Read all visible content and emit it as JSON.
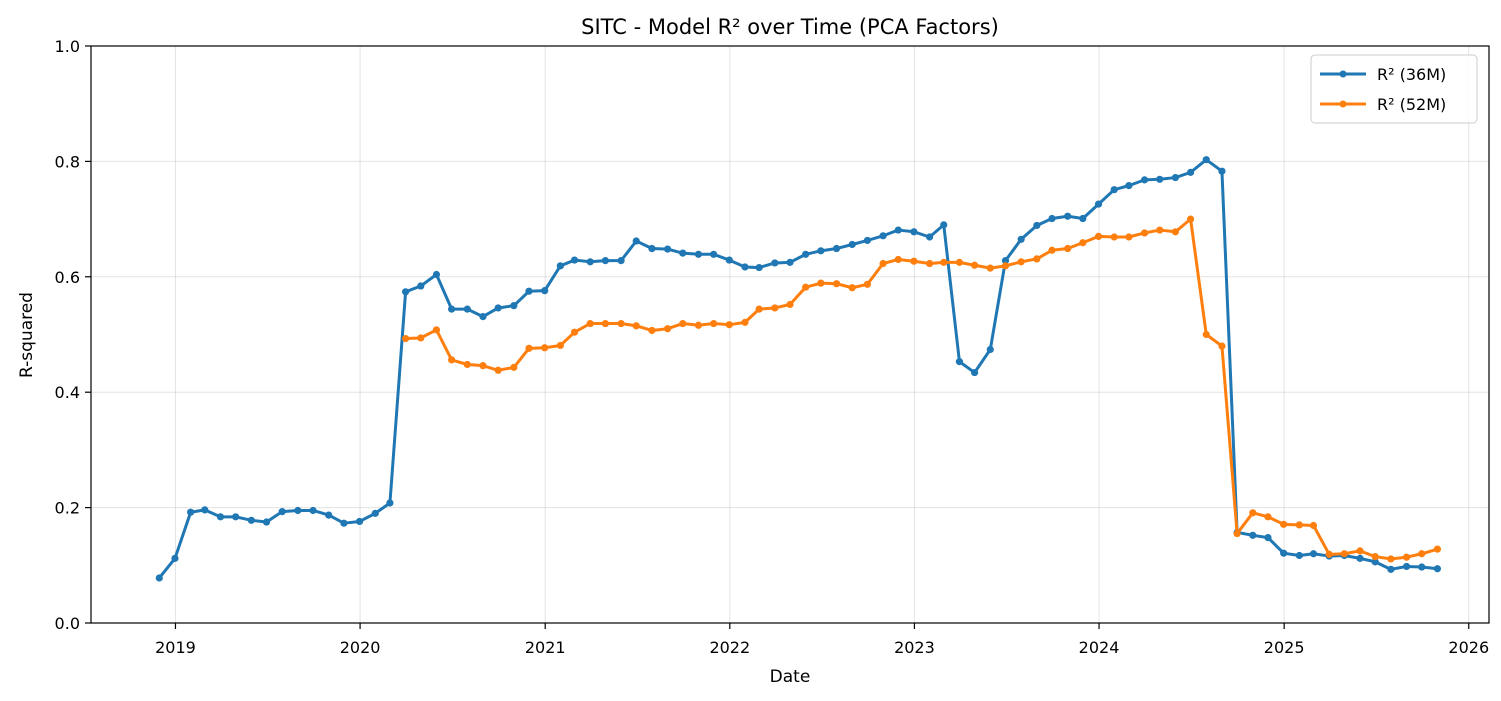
{
  "chart_data": {
    "type": "line",
    "title": "SITC - Model R² over Time (PCA Factors)",
    "xlabel": "Date",
    "ylabel": "R-squared",
    "ylim": [
      0,
      1.0
    ],
    "xlim": [
      "2018-07-18",
      "2026-02-10"
    ],
    "x_ticks": [
      "2019-01-01",
      "2020-01-01",
      "2021-01-01",
      "2022-01-01",
      "2023-01-01",
      "2024-01-01",
      "2025-01-01",
      "2026-01-01"
    ],
    "x_tick_labels": [
      "2019",
      "2020",
      "2021",
      "2022",
      "2023",
      "2024",
      "2025",
      "2026"
    ],
    "y_ticks": [
      0.0,
      0.2,
      0.4,
      0.6,
      0.8,
      1.0
    ],
    "y_tick_labels": [
      "0.0",
      "0.2",
      "0.4",
      "0.6",
      "0.8",
      "1.0"
    ],
    "grid": true,
    "legend_position": "top-right",
    "series": [
      {
        "name": "R² (36M)",
        "color": "#1f77b4",
        "x": [
          "2018-11-30",
          "2018-12-31",
          "2019-01-31",
          "2019-02-28",
          "2019-03-31",
          "2019-04-30",
          "2019-05-31",
          "2019-06-30",
          "2019-07-31",
          "2019-08-31",
          "2019-09-30",
          "2019-10-31",
          "2019-11-30",
          "2019-12-31",
          "2020-01-31",
          "2020-02-29",
          "2020-03-31",
          "2020-04-30",
          "2020-05-31",
          "2020-06-30",
          "2020-07-31",
          "2020-08-31",
          "2020-09-30",
          "2020-10-31",
          "2020-11-30",
          "2020-12-31",
          "2021-01-31",
          "2021-02-28",
          "2021-03-31",
          "2021-04-30",
          "2021-05-31",
          "2021-06-30",
          "2021-07-31",
          "2021-08-31",
          "2021-09-30",
          "2021-10-31",
          "2021-11-30",
          "2021-12-31",
          "2022-01-31",
          "2022-02-28",
          "2022-03-31",
          "2022-04-30",
          "2022-05-31",
          "2022-06-30",
          "2022-07-31",
          "2022-08-31",
          "2022-09-30",
          "2022-10-31",
          "2022-11-30",
          "2022-12-31",
          "2023-01-31",
          "2023-02-28",
          "2023-03-31",
          "2023-04-30",
          "2023-05-31",
          "2023-06-30",
          "2023-07-31",
          "2023-08-31",
          "2023-09-30",
          "2023-10-31",
          "2023-11-30",
          "2023-12-31",
          "2024-01-31",
          "2024-02-29",
          "2024-03-31",
          "2024-04-30",
          "2024-05-31",
          "2024-06-30",
          "2024-07-31",
          "2024-08-31",
          "2024-09-30",
          "2024-10-31",
          "2024-11-30",
          "2024-12-31",
          "2025-01-31",
          "2025-02-28",
          "2025-03-31",
          "2025-04-30",
          "2025-05-31",
          "2025-06-30",
          "2025-07-31",
          "2025-08-31",
          "2025-09-30",
          "2025-10-31"
        ],
        "values": [
          0.078,
          0.112,
          0.192,
          0.196,
          0.184,
          0.184,
          0.178,
          0.175,
          0.193,
          0.195,
          0.195,
          0.187,
          0.173,
          0.176,
          0.19,
          0.208,
          0.574,
          0.584,
          0.604,
          0.544,
          0.544,
          0.531,
          0.546,
          0.55,
          0.575,
          0.576,
          0.619,
          0.629,
          0.626,
          0.628,
          0.628,
          0.662,
          0.649,
          0.648,
          0.641,
          0.639,
          0.639,
          0.629,
          0.617,
          0.616,
          0.624,
          0.625,
          0.639,
          0.645,
          0.649,
          0.656,
          0.663,
          0.671,
          0.681,
          0.678,
          0.669,
          0.69,
          0.453,
          0.434,
          0.474,
          0.628,
          0.665,
          0.689,
          0.701,
          0.705,
          0.701,
          0.726,
          0.751,
          0.758,
          0.768,
          0.769,
          0.772,
          0.781,
          0.803,
          0.783,
          0.157,
          0.152,
          0.148,
          0.121,
          0.117,
          0.12,
          0.116,
          0.117,
          0.112,
          0.106,
          0.093,
          0.098,
          0.097,
          0.094
        ]
      },
      {
        "name": "R² (52M)",
        "color": "#ff7f0e",
        "x": [
          "2020-03-31",
          "2020-04-30",
          "2020-05-31",
          "2020-06-30",
          "2020-07-31",
          "2020-08-31",
          "2020-09-30",
          "2020-10-31",
          "2020-11-30",
          "2020-12-31",
          "2021-01-31",
          "2021-02-28",
          "2021-03-31",
          "2021-04-30",
          "2021-05-31",
          "2021-06-30",
          "2021-07-31",
          "2021-08-31",
          "2021-09-30",
          "2021-10-31",
          "2021-11-30",
          "2021-12-31",
          "2022-01-31",
          "2022-02-28",
          "2022-03-31",
          "2022-04-30",
          "2022-05-31",
          "2022-06-30",
          "2022-07-31",
          "2022-08-31",
          "2022-09-30",
          "2022-10-31",
          "2022-11-30",
          "2022-12-31",
          "2023-01-31",
          "2023-02-28",
          "2023-03-31",
          "2023-04-30",
          "2023-05-31",
          "2023-06-30",
          "2023-07-31",
          "2023-08-31",
          "2023-09-30",
          "2023-10-31",
          "2023-11-30",
          "2023-12-31",
          "2024-01-31",
          "2024-02-29",
          "2024-03-31",
          "2024-04-30",
          "2024-05-31",
          "2024-06-30",
          "2024-07-31",
          "2024-08-31",
          "2024-09-30",
          "2024-10-31",
          "2024-11-30",
          "2024-12-31",
          "2025-01-31",
          "2025-02-28",
          "2025-03-31",
          "2025-04-30",
          "2025-05-31",
          "2025-06-30",
          "2025-07-31",
          "2025-08-31",
          "2025-09-30",
          "2025-10-31"
        ],
        "values": [
          0.493,
          0.494,
          0.508,
          0.456,
          0.448,
          0.446,
          0.438,
          0.443,
          0.476,
          0.477,
          0.481,
          0.504,
          0.519,
          0.519,
          0.519,
          0.515,
          0.507,
          0.51,
          0.519,
          0.516,
          0.519,
          0.517,
          0.521,
          0.544,
          0.546,
          0.552,
          0.582,
          0.589,
          0.588,
          0.581,
          0.587,
          0.623,
          0.63,
          0.627,
          0.623,
          0.625,
          0.625,
          0.62,
          0.615,
          0.619,
          0.626,
          0.631,
          0.646,
          0.649,
          0.659,
          0.67,
          0.669,
          0.669,
          0.676,
          0.681,
          0.678,
          0.7,
          0.5,
          0.48,
          0.155,
          0.191,
          0.184,
          0.171,
          0.17,
          0.169,
          0.119,
          0.12,
          0.125,
          0.115,
          0.111,
          0.114,
          0.12,
          0.128
        ]
      }
    ]
  }
}
